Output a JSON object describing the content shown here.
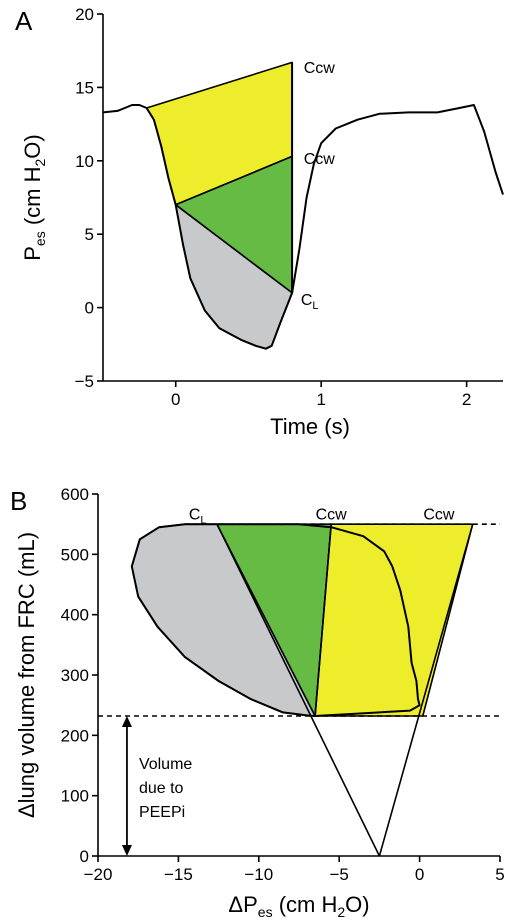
{
  "chart_data": [
    {
      "panel_label": "A",
      "type": "area",
      "xlabel": "Time (s)",
      "ylabel": {
        "main": "P",
        "sub": "es",
        "rest": " (cm H",
        "sub2": "2",
        "tail": "O)"
      },
      "xlim": [
        -0.5,
        2.25
      ],
      "ylim": [
        -5,
        20
      ],
      "xticks": [
        0,
        1,
        2
      ],
      "yticks": [
        -5,
        0,
        5,
        10,
        15,
        20
      ],
      "xtick_labels": [
        "0",
        "1",
        "2"
      ],
      "ytick_labels": [
        "−5",
        "0",
        "5",
        "10",
        "15",
        "20"
      ],
      "trace": [
        [
          -0.5,
          13.3
        ],
        [
          -0.4,
          13.4
        ],
        [
          -0.35,
          13.6
        ],
        [
          -0.3,
          13.8
        ],
        [
          -0.25,
          13.8
        ],
        [
          -0.2,
          13.6
        ],
        [
          -0.15,
          12.8
        ],
        [
          -0.1,
          11
        ],
        [
          -0.05,
          8.8
        ],
        [
          0,
          7
        ],
        [
          0.05,
          4.3
        ],
        [
          0.1,
          2
        ],
        [
          0.2,
          -0.2
        ],
        [
          0.3,
          -1.4
        ],
        [
          0.45,
          -2.2
        ],
        [
          0.55,
          -2.6
        ],
        [
          0.62,
          -2.8
        ],
        [
          0.66,
          -2.6
        ],
        [
          0.72,
          -1
        ],
        [
          0.8,
          1
        ],
        [
          0.85,
          4
        ],
        [
          0.9,
          7.5
        ],
        [
          0.95,
          9.8
        ],
        [
          1.0,
          11.2
        ],
        [
          1.1,
          12.2
        ],
        [
          1.25,
          12.8
        ],
        [
          1.4,
          13.2
        ],
        [
          1.6,
          13.3
        ],
        [
          1.8,
          13.3
        ],
        [
          1.95,
          13.6
        ],
        [
          2.05,
          13.8
        ],
        [
          2.12,
          12
        ],
        [
          2.2,
          9.2
        ],
        [
          2.25,
          7.7
        ]
      ],
      "regions": [
        {
          "name": "chest-wall-upper",
          "color": "#eded2b",
          "points": [
            [
              -0.2,
              13.6
            ],
            [
              0.8,
              16.7
            ],
            [
              0.8,
              10.3
            ],
            [
              0,
              7
            ],
            [
              -0.05,
              8.8
            ],
            [
              -0.1,
              11
            ],
            [
              -0.15,
              12.8
            ]
          ]
        },
        {
          "name": "chest-wall-lower",
          "color": "#66bb44",
          "points": [
            [
              0,
              7
            ],
            [
              0.8,
              10.3
            ],
            [
              0.8,
              1
            ]
          ]
        },
        {
          "name": "lung",
          "color": "#c8c9cb",
          "points": [
            [
              0,
              7
            ],
            [
              0.8,
              1
            ],
            [
              0.72,
              -1
            ],
            [
              0.66,
              -2.6
            ],
            [
              0.62,
              -2.8
            ],
            [
              0.55,
              -2.6
            ],
            [
              0.45,
              -2.2
            ],
            [
              0.3,
              -1.4
            ],
            [
              0.2,
              -0.2
            ],
            [
              0.1,
              2
            ],
            [
              0.05,
              4.3
            ]
          ]
        }
      ],
      "annotations": [
        {
          "text": "Ccw",
          "x": 0.88,
          "y": 16.4
        },
        {
          "text": "Ccw",
          "x": 0.88,
          "y": 10.2
        },
        {
          "text": "C",
          "sub": "L",
          "x": 0.86,
          "y": 0.6
        }
      ]
    },
    {
      "panel_label": "B",
      "type": "area",
      "xlabel": {
        "main": "ΔP",
        "sub": "es",
        "rest": " (cm H",
        "sub2": "2",
        "tail": "O)"
      },
      "ylabel": "Δlung volume from FRC (mL)",
      "xlim": [
        -20,
        5
      ],
      "ylim": [
        0,
        600
      ],
      "xticks": [
        -20,
        -15,
        -10,
        -5,
        0,
        5
      ],
      "yticks": [
        0,
        100,
        200,
        300,
        400,
        500,
        600
      ],
      "xtick_labels": [
        "−20",
        "−15",
        "−10",
        "−5",
        "0",
        "5"
      ],
      "ytick_labels": [
        "0",
        "100",
        "200",
        "300",
        "400",
        "500",
        "600"
      ],
      "loop": [
        [
          -6.5,
          232
        ],
        [
          -7,
          233
        ],
        [
          -8.5,
          238
        ],
        [
          -10.5,
          260
        ],
        [
          -12.5,
          290
        ],
        [
          -14.6,
          330
        ],
        [
          -16.3,
          380
        ],
        [
          -17.5,
          430
        ],
        [
          -17.9,
          480
        ],
        [
          -17.4,
          525
        ],
        [
          -16.2,
          545
        ],
        [
          -14.6,
          550
        ],
        [
          -12.6,
          550
        ],
        [
          -7.5,
          550
        ],
        [
          -5.5,
          545
        ],
        [
          -3.5,
          530
        ],
        [
          -2.2,
          505
        ],
        [
          -1.7,
          480
        ],
        [
          -1.2,
          440
        ],
        [
          -0.7,
          380
        ],
        [
          -0.5,
          320
        ],
        [
          -0.2,
          290
        ],
        [
          -0.1,
          260
        ],
        [
          0,
          250
        ],
        [
          -0.6,
          241
        ],
        [
          -6.5,
          232
        ]
      ],
      "regions": [
        {
          "name": "lung",
          "color": "#c8c9cb",
          "points": [
            [
              -12.6,
              550
            ],
            [
              -6.5,
              232
            ],
            [
              -7,
              233
            ],
            [
              -8.5,
              238
            ],
            [
              -10.5,
              260
            ],
            [
              -12.5,
              290
            ],
            [
              -14.6,
              330
            ],
            [
              -16.3,
              380
            ],
            [
              -17.5,
              430
            ],
            [
              -17.9,
              480
            ],
            [
              -17.4,
              525
            ],
            [
              -16.2,
              545
            ],
            [
              -14.6,
              550
            ]
          ]
        },
        {
          "name": "chest-wall-left",
          "color": "#66bb44",
          "points": [
            [
              -12.6,
              550
            ],
            [
              -6.5,
              232
            ],
            [
              -5.5,
              550
            ]
          ]
        },
        {
          "name": "chest-wall-right",
          "color": "#eded2b",
          "points": [
            [
              -5.5,
              550
            ],
            [
              3.3,
              550
            ],
            [
              0.2,
              232
            ],
            [
              -6.5,
              232
            ]
          ]
        }
      ],
      "lines": [
        {
          "name": "lung-compliance-line",
          "points": [
            [
              -12.6,
              550
            ],
            [
              -2.5,
              0
            ]
          ]
        },
        {
          "name": "chest-wall-line",
          "points": [
            [
              3.3,
              550
            ],
            [
              -2.5,
              0
            ]
          ]
        },
        {
          "name": "left-green-edge",
          "points": [
            [
              -5.5,
              550
            ],
            [
              -6.5,
              232
            ]
          ]
        }
      ],
      "dashed": [
        {
          "name": "end-inspiration-line",
          "points": [
            [
              -14.6,
              550
            ],
            [
              5,
              550
            ]
          ]
        },
        {
          "name": "frc-peepi-line",
          "points": [
            [
              -20,
              232
            ],
            [
              5,
              232
            ]
          ]
        }
      ],
      "arrow": {
        "x": -18.2,
        "from": 232,
        "to": 0
      },
      "annotations": [
        {
          "text": "C",
          "sub": "L",
          "x": -13.8,
          "y": 568
        },
        {
          "text": "Ccw",
          "x": -5.5,
          "y": 568
        },
        {
          "text": "Ccw",
          "x": 1.2,
          "y": 568
        }
      ],
      "arrow_label": [
        "Volume",
        "due to",
        "PEEPi"
      ]
    }
  ]
}
